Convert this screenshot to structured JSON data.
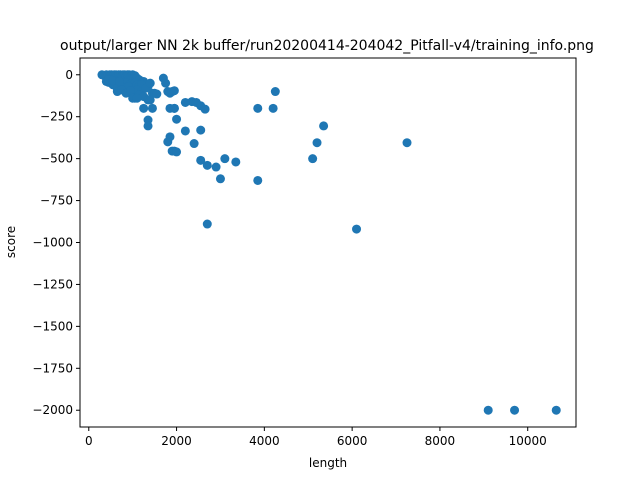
{
  "chart_data": {
    "type": "scatter",
    "title": "output/larger NN 2k buffer/run20200414-204042_Pitfall-v4/training_info.png",
    "xlabel": "length",
    "ylabel": "score",
    "xlim": [
      -200,
      11100
    ],
    "ylim": [
      -2100,
      100
    ],
    "xticks": [
      0,
      2000,
      4000,
      6000,
      8000,
      10000
    ],
    "xtick_labels": [
      "0",
      "2000",
      "4000",
      "6000",
      "8000",
      "10000"
    ],
    "yticks": [
      0,
      -250,
      -500,
      -750,
      -1000,
      -1250,
      -1500,
      -1750,
      -2000
    ],
    "ytick_labels": [
      "0",
      "−250",
      "−500",
      "−750",
      "−1000",
      "−1250",
      "−1500",
      "−1750",
      "−2000"
    ],
    "marker_color": "#1f77b4",
    "grid": false,
    "series": [
      {
        "name": "episodes",
        "x": [
          300,
          350,
          400,
          420,
          450,
          480,
          500,
          520,
          550,
          580,
          600,
          620,
          650,
          680,
          700,
          720,
          750,
          780,
          800,
          820,
          850,
          880,
          900,
          920,
          950,
          980,
          1000,
          1020,
          1050,
          1100,
          1150,
          1200,
          1250,
          1300,
          1350,
          400,
          450,
          500,
          550,
          600,
          650,
          700,
          750,
          800,
          850,
          900,
          950,
          1000,
          1050,
          1100,
          1150,
          1200,
          450,
          550,
          650,
          700,
          800,
          900,
          1000,
          1100,
          1200,
          1300,
          1400,
          650,
          750,
          850,
          950,
          1050,
          1150,
          1250,
          1350,
          1450,
          1000,
          1100,
          1500,
          1550,
          1700,
          1750,
          1800,
          1850,
          1900,
          1950,
          1850,
          1950,
          2200,
          1250,
          1400,
          1450,
          1950,
          2000,
          1350,
          1350,
          2350,
          2450,
          2550,
          2650,
          2550,
          1800,
          1850,
          1900,
          1950,
          2000,
          2400,
          2550,
          2700,
          2900,
          3000,
          3100,
          3350,
          2200,
          2700,
          3850,
          3850,
          4200,
          4250,
          5100,
          5200,
          5350,
          6100,
          7250,
          9100,
          9700,
          10650
        ],
        "y": [
          0,
          -5,
          0,
          -10,
          -20,
          0,
          -5,
          0,
          -10,
          0,
          -15,
          0,
          -5,
          0,
          -20,
          0,
          -10,
          0,
          -5,
          0,
          -10,
          0,
          -5,
          0,
          -10,
          -5,
          0,
          -15,
          -5,
          -20,
          -30,
          -50,
          -40,
          -60,
          -70,
          -40,
          -45,
          -30,
          -60,
          -50,
          -40,
          -55,
          -50,
          -60,
          -50,
          -70,
          -55,
          -60,
          -50,
          -60,
          -65,
          -60,
          -30,
          -35,
          -80,
          -40,
          -90,
          -70,
          -100,
          -90,
          -100,
          -80,
          -50,
          -100,
          -90,
          -110,
          -95,
          -140,
          -120,
          -130,
          -150,
          -110,
          -140,
          -140,
          -110,
          -115,
          -20,
          -50,
          -100,
          -110,
          -100,
          -95,
          -200,
          -200,
          -165,
          -200,
          -150,
          -200,
          -200,
          -265,
          -270,
          -305,
          -160,
          -165,
          -185,
          -205,
          -330,
          -400,
          -370,
          -455,
          -455,
          -460,
          -410,
          -510,
          -540,
          -550,
          -620,
          -500,
          -520,
          -335,
          -890,
          -200,
          -630,
          -200,
          -100,
          -500,
          -405,
          -305,
          -920,
          -405,
          -2000,
          -2000,
          -2000
        ]
      }
    ]
  }
}
